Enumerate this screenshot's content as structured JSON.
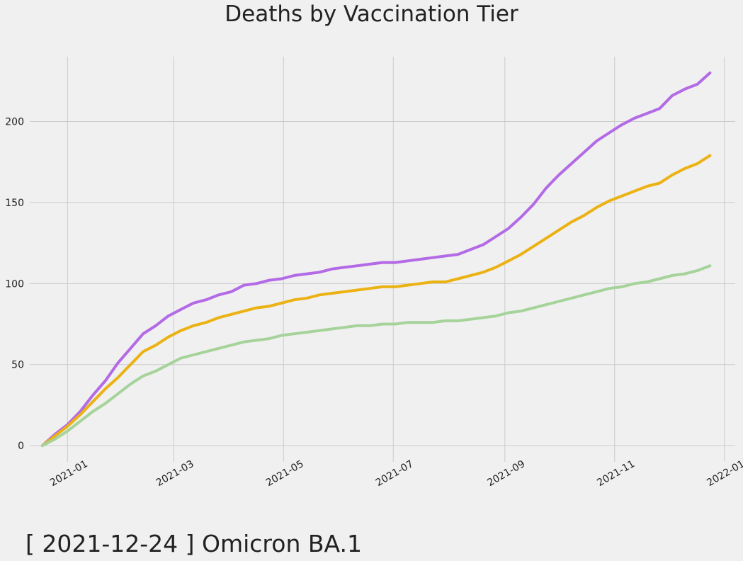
{
  "caption": "[ 2021-12-24 ] Omicron BA.1",
  "chart_data": {
    "type": "line",
    "title": "Deaths by Vaccination Tier",
    "xlabel": "",
    "ylabel": "",
    "x_axis": "date",
    "xlim": [
      "2020-12-11",
      "2022-01-07"
    ],
    "ylim": [
      -10,
      240
    ],
    "x_ticks": [
      "2021-01",
      "2021-03",
      "2021-05",
      "2021-07",
      "2021-09",
      "2021-11",
      "2022-01"
    ],
    "y_ticks": [
      0,
      50,
      100,
      150,
      200
    ],
    "grid": true,
    "legend": "none",
    "x": [
      "2020-12-18",
      "2020-12-25",
      "2021-01-01",
      "2021-01-08",
      "2021-01-15",
      "2021-01-22",
      "2021-01-29",
      "2021-02-05",
      "2021-02-12",
      "2021-02-19",
      "2021-02-26",
      "2021-03-05",
      "2021-03-12",
      "2021-03-19",
      "2021-03-26",
      "2021-04-02",
      "2021-04-09",
      "2021-04-16",
      "2021-04-23",
      "2021-04-30",
      "2021-05-07",
      "2021-05-14",
      "2021-05-21",
      "2021-05-28",
      "2021-06-04",
      "2021-06-11",
      "2021-06-18",
      "2021-06-25",
      "2021-07-02",
      "2021-07-09",
      "2021-07-16",
      "2021-07-23",
      "2021-07-30",
      "2021-08-06",
      "2021-08-13",
      "2021-08-20",
      "2021-08-27",
      "2021-09-03",
      "2021-09-10",
      "2021-09-17",
      "2021-09-24",
      "2021-10-01",
      "2021-10-08",
      "2021-10-15",
      "2021-10-22",
      "2021-10-29",
      "2021-11-05",
      "2021-11-12",
      "2021-11-19",
      "2021-11-26",
      "2021-12-03",
      "2021-12-10",
      "2021-12-17",
      "2021-12-24"
    ],
    "series": [
      {
        "color": "#b36ae6",
        "values": [
          0,
          7,
          13,
          21,
          31,
          40,
          51,
          60,
          69,
          74,
          80,
          84,
          88,
          90,
          93,
          95,
          99,
          100,
          102,
          103,
          105,
          106,
          107,
          109,
          110,
          111,
          112,
          113,
          113,
          114,
          115,
          116,
          117,
          118,
          121,
          124,
          129,
          134,
          141,
          149,
          159,
          167,
          174,
          181,
          188,
          193,
          198,
          202,
          205,
          208,
          216,
          220,
          223,
          230
        ]
      },
      {
        "color": "#ebb214",
        "values": [
          0,
          6,
          12,
          19,
          27,
          35,
          42,
          50,
          58,
          62,
          67,
          71,
          74,
          76,
          79,
          81,
          83,
          85,
          86,
          88,
          90,
          91,
          93,
          94,
          95,
          96,
          97,
          98,
          98,
          99,
          100,
          101,
          101,
          103,
          105,
          107,
          110,
          114,
          118,
          123,
          128,
          133,
          138,
          142,
          147,
          151,
          154,
          157,
          160,
          162,
          167,
          171,
          174,
          179
        ]
      },
      {
        "color": "#a5d39a",
        "values": [
          0,
          4,
          9,
          15,
          21,
          26,
          32,
          38,
          43,
          46,
          50,
          54,
          56,
          58,
          60,
          62,
          64,
          65,
          66,
          68,
          69,
          70,
          71,
          72,
          73,
          74,
          74,
          75,
          75,
          76,
          76,
          76,
          77,
          77,
          78,
          79,
          80,
          82,
          83,
          85,
          87,
          89,
          91,
          93,
          95,
          97,
          98,
          100,
          101,
          103,
          105,
          106,
          108,
          111
        ]
      }
    ]
  }
}
